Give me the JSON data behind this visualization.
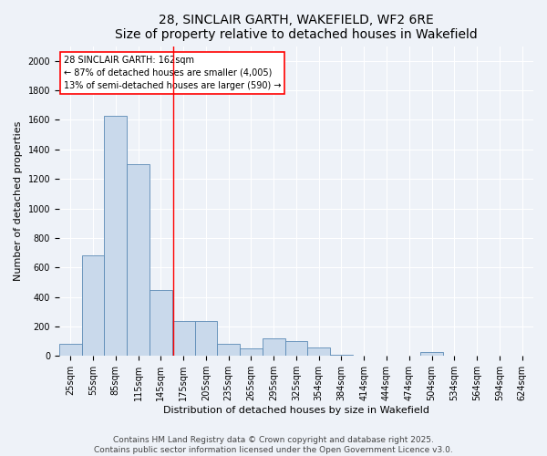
{
  "title_line1": "28, SINCLAIR GARTH, WAKEFIELD, WF2 6RE",
  "title_line2": "Size of property relative to detached houses in Wakefield",
  "xlabel": "Distribution of detached houses by size in Wakefield",
  "ylabel": "Number of detached properties",
  "categories": [
    "25sqm",
    "55sqm",
    "85sqm",
    "115sqm",
    "145sqm",
    "175sqm",
    "205sqm",
    "235sqm",
    "265sqm",
    "295sqm",
    "325sqm",
    "354sqm",
    "384sqm",
    "414sqm",
    "444sqm",
    "474sqm",
    "504sqm",
    "534sqm",
    "564sqm",
    "594sqm",
    "624sqm"
  ],
  "values": [
    80,
    680,
    1630,
    1300,
    450,
    240,
    240,
    80,
    50,
    120,
    100,
    60,
    10,
    5,
    5,
    5,
    25,
    5,
    5,
    5,
    5
  ],
  "bar_color": "#c9d9eb",
  "bar_edge_color": "#5a8ab5",
  "annotation_box_text": "28 SINCLAIR GARTH: 162sqm\n← 87% of detached houses are smaller (4,005)\n13% of semi-detached houses are larger (590) →",
  "box_color": "white",
  "box_edge_color": "red",
  "ylim": [
    0,
    2100
  ],
  "yticks": [
    0,
    200,
    400,
    600,
    800,
    1000,
    1200,
    1400,
    1600,
    1800,
    2000
  ],
  "footer_line1": "Contains HM Land Registry data © Crown copyright and database right 2025.",
  "footer_line2": "Contains public sector information licensed under the Open Government Licence v3.0.",
  "background_color": "#eef2f8",
  "grid_color": "white",
  "title_fontsize": 10,
  "axis_label_fontsize": 8,
  "annotation_fontsize": 7,
  "tick_fontsize": 7,
  "footer_fontsize": 6.5
}
